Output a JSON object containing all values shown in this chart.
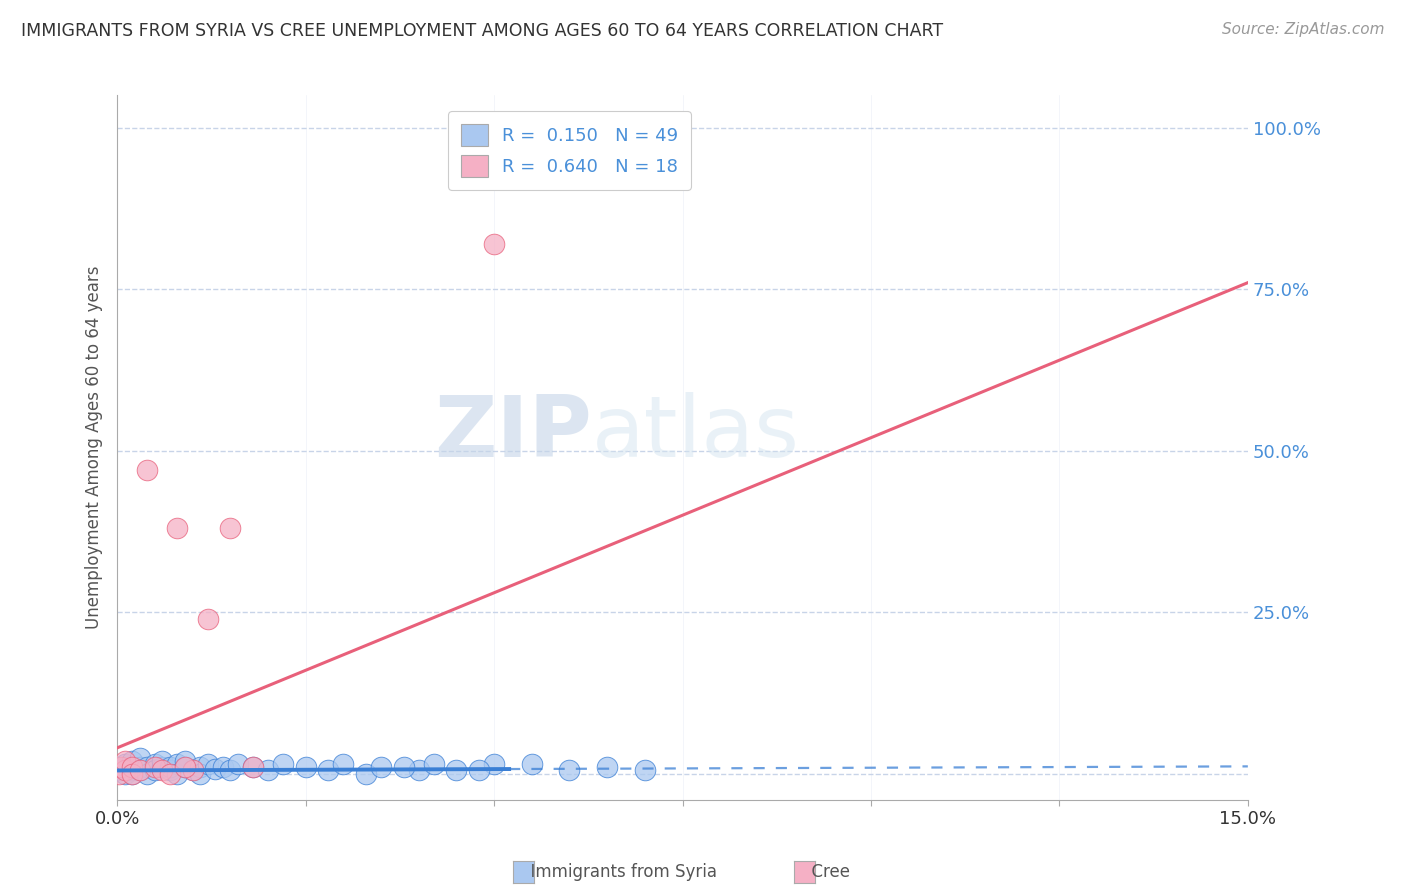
{
  "title": "IMMIGRANTS FROM SYRIA VS CREE UNEMPLOYMENT AMONG AGES 60 TO 64 YEARS CORRELATION CHART",
  "source": "Source: ZipAtlas.com",
  "ylabel": "Unemployment Among Ages 60 to 64 years",
  "xlim": [
    0.0,
    0.15
  ],
  "ylim": [
    -0.04,
    1.05
  ],
  "syria_R": 0.15,
  "syria_N": 49,
  "cree_R": 0.64,
  "cree_N": 18,
  "syria_color": "#aac8f0",
  "cree_color": "#f5b0c5",
  "syria_line_color": "#3a7fd5",
  "cree_line_color": "#e8607a",
  "watermark_zip": "ZIP",
  "watermark_atlas": "atlas",
  "background_color": "#ffffff",
  "grid_color": "#c8d4e8",
  "syria_x": [
    0.0005,
    0.001,
    0.001,
    0.001,
    0.0015,
    0.002,
    0.002,
    0.002,
    0.003,
    0.003,
    0.003,
    0.004,
    0.004,
    0.005,
    0.005,
    0.006,
    0.006,
    0.007,
    0.007,
    0.008,
    0.008,
    0.009,
    0.009,
    0.01,
    0.011,
    0.011,
    0.012,
    0.013,
    0.014,
    0.015,
    0.016,
    0.018,
    0.02,
    0.022,
    0.025,
    0.028,
    0.03,
    0.033,
    0.035,
    0.04,
    0.05,
    0.06,
    0.065,
    0.07,
    0.055,
    0.045,
    0.038,
    0.042,
    0.048
  ],
  "syria_y": [
    0.005,
    0.01,
    0.0,
    0.015,
    0.008,
    0.005,
    0.02,
    0.0,
    0.01,
    0.025,
    0.005,
    0.01,
    0.0,
    0.015,
    0.005,
    0.01,
    0.02,
    0.005,
    0.01,
    0.015,
    0.0,
    0.01,
    0.02,
    0.005,
    0.01,
    0.0,
    0.015,
    0.008,
    0.01,
    0.005,
    0.015,
    0.01,
    0.005,
    0.015,
    0.01,
    0.005,
    0.015,
    0.0,
    0.01,
    0.005,
    0.015,
    0.005,
    0.01,
    0.005,
    0.015,
    0.005,
    0.01,
    0.015,
    0.005
  ],
  "cree_x": [
    0.0003,
    0.0005,
    0.001,
    0.001,
    0.002,
    0.002,
    0.003,
    0.004,
    0.005,
    0.006,
    0.007,
    0.008,
    0.01,
    0.015,
    0.018,
    0.05,
    0.009,
    0.012
  ],
  "cree_y": [
    0.0,
    0.01,
    0.005,
    0.02,
    0.01,
    0.0,
    0.005,
    0.47,
    0.01,
    0.005,
    0.0,
    0.38,
    0.005,
    0.38,
    0.01,
    0.82,
    0.01,
    0.24
  ],
  "syria_line_x0": 0.0,
  "syria_line_x_solid_end": 0.052,
  "syria_line_x1": 0.15,
  "syria_line_y0": 0.005,
  "syria_line_slope": 0.042,
  "cree_line_x0": 0.0,
  "cree_line_x1": 0.15,
  "cree_line_y0": 0.04,
  "cree_line_y1": 0.76
}
